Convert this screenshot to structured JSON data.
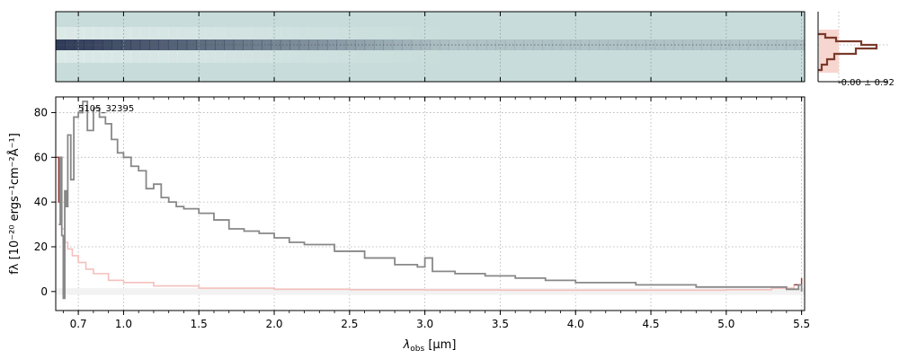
{
  "chart_data": [
    {
      "type": "heatmap",
      "description_role": "2D spectrum panel",
      "colors": {
        "background": "#c8dddb",
        "trace": "#1f2a4a"
      },
      "grid": true
    },
    {
      "type": "line",
      "xlabel_main": "λ",
      "xlabel_sub": "obs",
      "xlabel_unit": " [μm]",
      "ylabel": "fλ [10⁻²⁰ ergs⁻¹cm⁻²Å⁻¹]",
      "annotation": "5105_32395",
      "xlim": [
        0.55,
        5.52
      ],
      "ylim": [
        -8.5,
        87
      ],
      "x_ticks": [
        "0.7",
        "1.0",
        "1.5",
        "2.0",
        "2.5",
        "3.0",
        "3.5",
        "4.0",
        "4.5",
        "5.0",
        "5.5"
      ],
      "y_ticks": [
        "0",
        "20",
        "40",
        "60",
        "80"
      ],
      "grid": true,
      "colors": {
        "flux": "#888888",
        "error": "#f4c0bc",
        "error_dark": "#8b3a3a"
      },
      "series": [
        {
          "role": "flux",
          "x": [
            0.57,
            0.58,
            0.59,
            0.6,
            0.61,
            0.62,
            0.63,
            0.65,
            0.67,
            0.7,
            0.73,
            0.76,
            0.8,
            0.84,
            0.88,
            0.92,
            0.96,
            1.0,
            1.05,
            1.1,
            1.15,
            1.2,
            1.25,
            1.3,
            1.35,
            1.4,
            1.5,
            1.6,
            1.7,
            1.8,
            1.9,
            2.0,
            2.1,
            2.2,
            2.4,
            2.6,
            2.8,
            2.95,
            3.0,
            3.05,
            3.2,
            3.4,
            3.6,
            3.8,
            4.0,
            4.2,
            4.4,
            4.6,
            4.8,
            5.0,
            5.2,
            5.4,
            5.48,
            5.5
          ],
          "y": [
            30,
            60,
            25,
            -3,
            45,
            38,
            70,
            50,
            78,
            80,
            85,
            72,
            82,
            78,
            75,
            68,
            62,
            60,
            56,
            54,
            46,
            48,
            42,
            40,
            38,
            37,
            35,
            32,
            28,
            27,
            26,
            24,
            22,
            21,
            18,
            15,
            12,
            11,
            15,
            9,
            8,
            7,
            6,
            5,
            4,
            4,
            3,
            3,
            2,
            2,
            2,
            1,
            3,
            0
          ]
        },
        {
          "role": "error",
          "x": [
            0.55,
            0.57,
            0.59,
            0.61,
            0.63,
            0.66,
            0.7,
            0.75,
            0.8,
            0.9,
            1.0,
            1.2,
            1.5,
            2.0,
            2.5,
            3.0,
            3.5,
            4.0,
            4.5,
            5.0,
            5.3,
            5.45,
            5.5
          ],
          "y": [
            60,
            40,
            28,
            22,
            19,
            16,
            13,
            10,
            8,
            5,
            4,
            2.5,
            1.5,
            1,
            0.8,
            0.7,
            0.6,
            0.6,
            0.6,
            0.8,
            1.5,
            3,
            6
          ]
        }
      ]
    },
    {
      "type": "line",
      "description_role": "profile histogram panel",
      "annotation": "-0.00 ± 0.92",
      "colors": {
        "fill": "#f8d6d0",
        "line": "#7a3a2a"
      }
    }
  ]
}
